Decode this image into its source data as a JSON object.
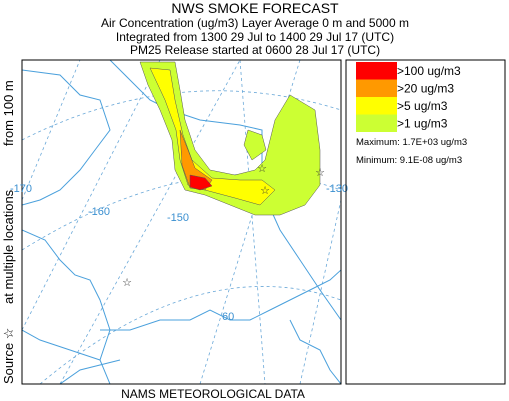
{
  "header": {
    "title": "NWS SMOKE FORECAST",
    "lines": [
      "Air Concentration (ug/m3) Layer Average    0 m and  5000 m",
      "Integrated from 1300 29 Jul to 1400 29 Jul 17 (UTC)",
      "PM25 Release started at 0600 28 Jul 17 (UTC)"
    ]
  },
  "map": {
    "labels": [
      "-170",
      "-160",
      "-150",
      "-130",
      "60"
    ]
  },
  "caption": [
    "Source ☆",
    "at multiple locations",
    "from  100 m"
  ],
  "footer": "NAMS METEOROLOGICAL DATA",
  "legend": {
    "items": [
      {
        "label": ">100 ug/m3",
        "color": "#ff0000"
      },
      {
        "label": ">20 ug/m3",
        "color": "#ff9900"
      },
      {
        "label": ">5 ug/m3",
        "color": "#ffff00"
      },
      {
        "label": ">1 ug/m3",
        "color": "#ccff33"
      }
    ],
    "maximum": "Maximum: 1.7E+03 ug/m3",
    "minimum": "Minimum: 9.1E-08 ug/m3"
  }
}
